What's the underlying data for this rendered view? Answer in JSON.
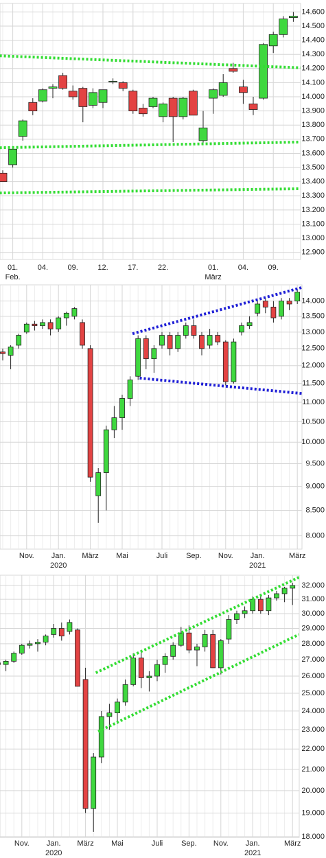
{
  "chart_data": [
    {
      "type": "candlestick",
      "log_scale": false,
      "grid": true,
      "up_color": "#3fd83f",
      "down_color": "#e34343",
      "categories": [
        null,
        "01.",
        null,
        null,
        "04.",
        null,
        null,
        "09.",
        null,
        null,
        "12.",
        null,
        null,
        "17.",
        null,
        null,
        "22.",
        null,
        null,
        null,
        null,
        "01.",
        null,
        null,
        "04.",
        null,
        null,
        "09.",
        null,
        null
      ],
      "sublabels": [
        null,
        "Feb.",
        null,
        null,
        null,
        null,
        null,
        null,
        null,
        null,
        null,
        null,
        null,
        null,
        null,
        null,
        null,
        null,
        null,
        null,
        null,
        "März",
        null,
        null,
        null,
        null,
        null,
        null,
        null,
        null
      ],
      "open": [
        13460,
        13520,
        13720,
        13960,
        13970,
        14060,
        14150,
        14040,
        14060,
        13940,
        13960,
        14110,
        14100,
        14040,
        13920,
        13930,
        13860,
        13990,
        13860,
        14040,
        13690,
        13990,
        14010,
        14200,
        14070,
        13950,
        13990,
        14360,
        14440,
        14560
      ],
      "high": [
        13480,
        13640,
        13840,
        13990,
        14060,
        14090,
        14170,
        14080,
        14070,
        14060,
        14050,
        14130,
        14110,
        14050,
        13950,
        14000,
        13960,
        14000,
        14000,
        14050,
        13900,
        14060,
        14160,
        14240,
        14120,
        14000,
        14380,
        14460,
        14570,
        14600
      ],
      "low": [
        13400,
        13500,
        13690,
        13870,
        13960,
        13990,
        14050,
        13980,
        13820,
        13920,
        13920,
        14090,
        14040,
        13880,
        13860,
        13920,
        13820,
        13680,
        13840,
        13870,
        13660,
        13880,
        14000,
        14170,
        13950,
        13870,
        13980,
        14310,
        14420,
        14530
      ],
      "close": [
        13400,
        13630,
        13830,
        13900,
        14050,
        14070,
        14060,
        14000,
        13930,
        14030,
        14050,
        14110,
        14060,
        13900,
        13880,
        13990,
        13950,
        13860,
        13990,
        13870,
        13780,
        14050,
        14100,
        14180,
        14030,
        13910,
        14370,
        14440,
        14550,
        14570
      ],
      "ylim": [
        12850,
        14660
      ],
      "yticks": [
        {
          "value": 12900,
          "label": "12.900"
        },
        {
          "value": 13000,
          "label": "13.000"
        },
        {
          "value": 13100,
          "label": "13.100"
        },
        {
          "value": 13200,
          "label": "13.200"
        },
        {
          "value": 13300,
          "label": "13.300"
        },
        {
          "value": 13400,
          "label": "13.400"
        },
        {
          "value": 13500,
          "label": "13.500"
        },
        {
          "value": 13600,
          "label": "13.600"
        },
        {
          "value": 13700,
          "label": "13.700"
        },
        {
          "value": 13800,
          "label": "13.800"
        },
        {
          "value": 13900,
          "label": "13.900"
        },
        {
          "value": 14000,
          "label": "14.000"
        },
        {
          "value": 14100,
          "label": "14.100"
        },
        {
          "value": 14200,
          "label": "14.200"
        },
        {
          "value": 14300,
          "label": "14.300"
        },
        {
          "value": 14400,
          "label": "14.400"
        },
        {
          "value": 14500,
          "label": "14.500"
        },
        {
          "value": 14600,
          "label": "14.600"
        }
      ],
      "trend_lines": [
        {
          "color": "#33dd33",
          "x": [
            -0.3,
            29.7
          ],
          "y": [
            14290,
            14205
          ]
        },
        {
          "color": "#33dd33",
          "x": [
            -0.3,
            29.7
          ],
          "y": [
            13640,
            13680
          ]
        },
        {
          "color": "#33dd33",
          "x": [
            -0.3,
            29.7
          ],
          "y": [
            13320,
            13350
          ]
        }
      ]
    },
    {
      "type": "candlestick",
      "log_scale": true,
      "grid": true,
      "up_color": "#3fd83f",
      "down_color": "#e34343",
      "categories": [
        null,
        null,
        null,
        "Nov.",
        null,
        null,
        null,
        "Jan.",
        null,
        null,
        null,
        "März",
        null,
        null,
        null,
        "Mai",
        null,
        null,
        null,
        null,
        "Juli",
        null,
        null,
        null,
        "Sep.",
        null,
        null,
        null,
        "Nov.",
        null,
        null,
        null,
        "Jan.",
        null,
        null,
        null,
        null,
        "März"
      ],
      "sublabels": [
        null,
        null,
        null,
        null,
        null,
        null,
        null,
        "2020",
        null,
        null,
        null,
        null,
        null,
        null,
        null,
        null,
        null,
        null,
        null,
        null,
        null,
        null,
        null,
        null,
        null,
        null,
        null,
        null,
        null,
        null,
        null,
        null,
        "2021",
        null,
        null,
        null,
        null,
        null
      ],
      "open": [
        12400,
        12300,
        12600,
        13000,
        13250,
        13200,
        13300,
        13100,
        13450,
        13500,
        13300,
        12500,
        8800,
        9300,
        10300,
        10600,
        11100,
        11700,
        12800,
        12200,
        12600,
        12900,
        12500,
        12900,
        13200,
        12900,
        12600,
        12900,
        12700,
        11550,
        13000,
        13200,
        13600,
        14000,
        13800,
        13500,
        14000,
        14000
      ],
      "high": [
        12500,
        12600,
        12950,
        13300,
        13350,
        13400,
        13400,
        13500,
        13650,
        13800,
        13400,
        12600,
        9400,
        10400,
        10900,
        11200,
        11700,
        12900,
        12900,
        12600,
        13000,
        13000,
        13000,
        13300,
        13400,
        13000,
        13100,
        13000,
        12750,
        12800,
        13300,
        13500,
        14000,
        14100,
        14000,
        14100,
        14100,
        14400
      ],
      "low": [
        12150,
        11900,
        12500,
        12950,
        13050,
        13100,
        12900,
        13000,
        13200,
        13400,
        12500,
        9100,
        8250,
        8500,
        10100,
        10300,
        10900,
        11600,
        11900,
        11800,
        12500,
        12300,
        12400,
        12800,
        12800,
        12300,
        12500,
        12600,
        11450,
        11500,
        12900,
        13100,
        13500,
        13600,
        13300,
        13400,
        13700,
        13900
      ],
      "close": [
        12350,
        12550,
        12900,
        13250,
        13200,
        13300,
        13100,
        13450,
        13600,
        13750,
        12600,
        9200,
        9300,
        10300,
        10600,
        11100,
        11600,
        12800,
        12200,
        12500,
        12900,
        12500,
        12900,
        13200,
        12900,
        12500,
        12900,
        12700,
        11550,
        12700,
        13200,
        13300,
        13900,
        13800,
        13450,
        14000,
        13900,
        14300
      ],
      "ylim": [
        7750,
        14550
      ],
      "yticks": [
        {
          "value": 8000,
          "label": "8.000"
        },
        {
          "value": 8500,
          "label": "8.500"
        },
        {
          "value": 9000,
          "label": "9.000"
        },
        {
          "value": 9500,
          "label": "9.500"
        },
        {
          "value": 10000,
          "label": "10.000"
        },
        {
          "value": 10500,
          "label": "10.500"
        },
        {
          "value": 11000,
          "label": "11.000"
        },
        {
          "value": 11500,
          "label": "11.500"
        },
        {
          "value": 12000,
          "label": "12.000"
        },
        {
          "value": 12500,
          "label": "12.500"
        },
        {
          "value": 13000,
          "label": "13.000"
        },
        {
          "value": 13500,
          "label": "13.500"
        },
        {
          "value": 14000,
          "label": "14.000"
        }
      ],
      "trend_lines": [
        {
          "color": "#1f1fd6",
          "x": [
            16.3,
            37.6
          ],
          "y": [
            12950,
            14460
          ]
        },
        {
          "color": "#1f1fd6",
          "x": [
            17.2,
            37.6
          ],
          "y": [
            11650,
            11230
          ]
        }
      ]
    },
    {
      "type": "candlestick",
      "log_scale": true,
      "grid": true,
      "up_color": "#3fd83f",
      "down_color": "#e34343",
      "categories": [
        null,
        null,
        null,
        "Nov.",
        null,
        null,
        null,
        "Jan.",
        null,
        null,
        null,
        "März",
        null,
        null,
        null,
        "Mai",
        null,
        null,
        null,
        null,
        "Juli",
        null,
        null,
        null,
        "Sep.",
        null,
        null,
        null,
        "Nov.",
        null,
        null,
        null,
        "Jan.",
        null,
        null,
        null,
        null,
        "März"
      ],
      "sublabels": [
        null,
        null,
        null,
        null,
        null,
        null,
        null,
        "2020",
        null,
        null,
        null,
        null,
        null,
        null,
        null,
        null,
        null,
        null,
        null,
        null,
        null,
        null,
        null,
        null,
        null,
        null,
        null,
        null,
        null,
        null,
        null,
        null,
        "2021",
        null,
        null,
        null,
        null,
        null
      ],
      "open": [
        26800,
        26700,
        26900,
        27400,
        27900,
        28000,
        28100,
        28600,
        29000,
        28800,
        28900,
        25800,
        19200,
        21600,
        23700,
        23900,
        24500,
        25500,
        27100,
        25900,
        26000,
        26700,
        27200,
        27900,
        28700,
        27600,
        27800,
        28600,
        26500,
        28300,
        29600,
        30000,
        30200,
        31000,
        30200,
        31100,
        31400,
        31800
      ],
      "high": [
        27000,
        27000,
        27500,
        28000,
        28200,
        28300,
        28600,
        29300,
        29400,
        29600,
        29000,
        26500,
        21800,
        24000,
        24400,
        24700,
        25800,
        27400,
        27600,
        26300,
        27000,
        27400,
        28100,
        29100,
        29200,
        28000,
        28900,
        28900,
        28300,
        29900,
        30200,
        30500,
        31200,
        31200,
        31300,
        31600,
        31900,
        32200
      ],
      "low": [
        26500,
        26300,
        26800,
        27300,
        27700,
        27500,
        27900,
        28400,
        28200,
        28600,
        25400,
        19000,
        18200,
        21300,
        23000,
        23300,
        24300,
        25400,
        25300,
        25100,
        25700,
        26200,
        27000,
        27800,
        27400,
        26600,
        27500,
        26500,
        26100,
        28000,
        29300,
        29700,
        30000,
        30000,
        29900,
        30900,
        30800,
        30600
      ],
      "close": [
        26700,
        26900,
        27400,
        27900,
        28000,
        28100,
        28500,
        29000,
        28500,
        29400,
        25400,
        19200,
        21600,
        23700,
        23900,
        24500,
        25500,
        27100,
        25900,
        26000,
        26700,
        27200,
        27900,
        28700,
        27600,
        27800,
        28600,
        26500,
        28200,
        29600,
        30000,
        30200,
        31000,
        30200,
        31100,
        31400,
        31800,
        32000
      ],
      "ylim": [
        17970,
        32760
      ],
      "yticks": [
        {
          "value": 18000,
          "label": "18.000"
        },
        {
          "value": 19000,
          "label": "19.000"
        },
        {
          "value": 20000,
          "label": "20.000"
        },
        {
          "value": 21000,
          "label": "21.000"
        },
        {
          "value": 22000,
          "label": "22.000"
        },
        {
          "value": 23000,
          "label": "23.000"
        },
        {
          "value": 24000,
          "label": "24.000"
        },
        {
          "value": 25000,
          "label": "25.000"
        },
        {
          "value": 26000,
          "label": "26.000"
        },
        {
          "value": 27000,
          "label": "27.000"
        },
        {
          "value": 28000,
          "label": "28.000"
        },
        {
          "value": 29000,
          "label": "29.000"
        },
        {
          "value": 30000,
          "label": "30.000"
        },
        {
          "value": 31000,
          "label": "31.000"
        },
        {
          "value": 32000,
          "label": "32.000"
        }
      ],
      "trend_lines": [
        {
          "color": "#33dd33",
          "x": [
            12.3,
            37.8
          ],
          "y": [
            26200,
            32600
          ]
        },
        {
          "color": "#33dd33",
          "x": [
            12.6,
            37.8
          ],
          "y": [
            22900,
            28600
          ]
        }
      ]
    }
  ]
}
